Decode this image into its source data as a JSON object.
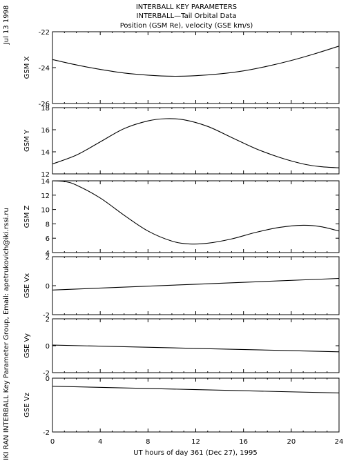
{
  "title_lines": [
    "INTERBALL KEY PARAMETERS",
    "INTERBALL—Tail Orbital Data",
    "Position (GSM Re), velocity (GSE km/s)"
  ],
  "side_date": "Jul 13 1998",
  "side_credit": "IKI RAN INTERBALL Key Parameter Group, Email: apetrukovich@iki.rssi.ru",
  "chart_data": {
    "type": "line",
    "xlabel": "UT hours of day 361 (Dec 27), 1995",
    "xlim": [
      0,
      24
    ],
    "xticks": [
      0,
      4,
      8,
      12,
      16,
      20,
      24
    ],
    "panels": [
      {
        "ylabel": "GSM X",
        "ylim": [
          -26,
          -22
        ],
        "yticks": [
          -26,
          -24,
          -22
        ],
        "x": [
          0,
          2,
          4,
          6,
          8,
          10,
          12,
          14,
          16,
          18,
          20,
          22,
          24
        ],
        "y": [
          -23.55,
          -23.85,
          -24.1,
          -24.3,
          -24.42,
          -24.48,
          -24.45,
          -24.35,
          -24.18,
          -23.92,
          -23.6,
          -23.22,
          -22.8
        ]
      },
      {
        "ylabel": "GSM Y",
        "ylim": [
          12,
          18
        ],
        "yticks": [
          12,
          14,
          16,
          18
        ],
        "x": [
          0,
          2,
          4,
          6,
          8,
          9.5,
          11,
          13,
          15,
          17,
          19,
          21,
          22.5,
          24
        ],
        "y": [
          12.9,
          13.7,
          14.9,
          16.1,
          16.8,
          17.0,
          16.9,
          16.3,
          15.3,
          14.3,
          13.5,
          12.9,
          12.65,
          12.55
        ]
      },
      {
        "ylabel": "GSM Z",
        "ylim": [
          4,
          14
        ],
        "yticks": [
          4,
          6,
          8,
          10,
          12,
          14
        ],
        "x": [
          0,
          1,
          2,
          4,
          6,
          8,
          10,
          11.5,
          13,
          15,
          17,
          19,
          21,
          22.5,
          24
        ],
        "y": [
          14.0,
          13.9,
          13.4,
          11.6,
          9.2,
          7.0,
          5.6,
          5.2,
          5.3,
          5.9,
          6.8,
          7.5,
          7.8,
          7.6,
          7.0
        ]
      },
      {
        "ylabel": "GSE Vx",
        "ylim": [
          -2,
          2
        ],
        "yticks": [
          -2,
          0,
          2
        ],
        "x": [
          0,
          24
        ],
        "y": [
          -0.3,
          0.5
        ]
      },
      {
        "ylabel": "GSE Vy",
        "ylim": [
          -2,
          2
        ],
        "yticks": [
          -2,
          0,
          2
        ],
        "x": [
          0,
          12,
          24
        ],
        "y": [
          0.05,
          -0.2,
          -0.45
        ]
      },
      {
        "ylabel": "GSE Vz",
        "ylim": [
          -2,
          0
        ],
        "yticks": [
          -2,
          0
        ],
        "x": [
          0,
          24
        ],
        "y": [
          -0.3,
          -0.55
        ]
      }
    ]
  }
}
